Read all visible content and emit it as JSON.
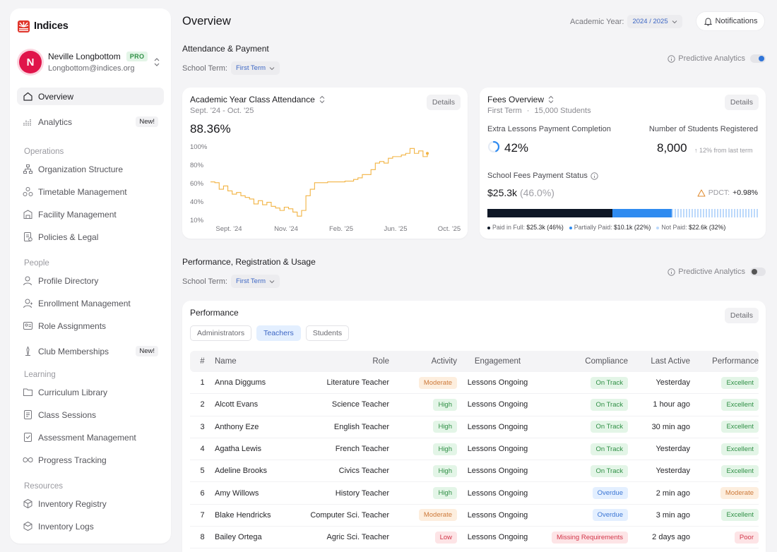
{
  "app": {
    "name": "Indices"
  },
  "profile": {
    "initial": "N",
    "name": "Neville Longbottom",
    "badge": "PRO",
    "email": "Longbottom@indices.org"
  },
  "nav": {
    "top": [
      {
        "label": "Overview",
        "icon": "home-icon",
        "active": true
      },
      {
        "label": "Analytics",
        "icon": "analytics-icon",
        "badge": "New!"
      }
    ],
    "sections": [
      {
        "label": "Operations",
        "items": [
          {
            "label": "Organization Structure",
            "icon": "org-structure-icon"
          },
          {
            "label": "Timetable Management",
            "icon": "timetable-icon"
          },
          {
            "label": "Facility Management",
            "icon": "facility-icon"
          },
          {
            "label": "Policies & Legal",
            "icon": "policy-icon"
          }
        ]
      },
      {
        "label": "People",
        "items": [
          {
            "label": "Profile Directory",
            "icon": "profile-icon"
          },
          {
            "label": "Enrollment Management",
            "icon": "enrollment-icon"
          },
          {
            "label": "Role Assignments",
            "icon": "role-icon"
          },
          {
            "label": "Club Memberships",
            "icon": "club-icon",
            "badge": "New!"
          }
        ]
      },
      {
        "label": "Learning",
        "items": [
          {
            "label": "Curriculum Library",
            "icon": "folder-icon"
          },
          {
            "label": "Class Sessions",
            "icon": "sessions-icon"
          },
          {
            "label": "Assessment Management",
            "icon": "assessment-icon"
          },
          {
            "label": "Progress Tracking",
            "icon": "progress-icon"
          }
        ]
      },
      {
        "label": "Resources",
        "items": [
          {
            "label": "Inventory Registry",
            "icon": "box-icon"
          },
          {
            "label": "Inventory Logs",
            "icon": "logs-icon"
          }
        ]
      }
    ]
  },
  "header": {
    "title": "Overview",
    "year_label": "Academic Year:",
    "year_value": "2024 / 2025",
    "notifications_label": "Notifications"
  },
  "attendance_section": {
    "title": "Attendance & Payment",
    "term_label": "School Term:",
    "term_value": "First Term",
    "predictive_label": "Predictive Analytics",
    "predictive_on": true
  },
  "attendance_card": {
    "title": "Academic Year Class Attendance",
    "subtitle": "Sept. '24 - Oct. '25",
    "value": "88.36%",
    "details_label": "Details"
  },
  "fees_card": {
    "title": "Fees Overview",
    "subtitle": "First Term",
    "students": "15,000 Students",
    "details_label": "Details",
    "extra_label": "Extra Lessons Payment Completion",
    "extra_value": "42%",
    "extra_fraction": 0.42,
    "registered_label": "Number of Students Registered",
    "registered_value": "8,000",
    "registered_note": "12% from last term",
    "status_label": "School Fees Payment Status",
    "status_value": "$25.3k",
    "status_pct": "(46.0%)",
    "pdct_label": "PDCT:",
    "pdct_value": "+0.98%",
    "bar": [
      {
        "label": "Paid in Full:",
        "value": "$25.3k (46%)",
        "fraction": 0.46,
        "color": "#0e1726"
      },
      {
        "label": "Partially Paid:",
        "value": "$10.1k (22%)",
        "fraction": 0.22,
        "color": "#2f8bf0"
      },
      {
        "label": "Not Paid:",
        "value": "$22.6k (32%)",
        "fraction": 0.32,
        "color": "#bcd9fb"
      }
    ]
  },
  "chart_data": {
    "type": "line",
    "title": "Academic Year Class Attendance",
    "x_ticks": [
      "Sept. '24",
      "Nov. '24",
      "Feb. '25",
      "Jun. '25",
      "Oct. '25"
    ],
    "y_ticks": [
      "100%",
      "80%",
      "60%",
      "40%",
      "10%"
    ],
    "ylim": [
      10,
      100
    ],
    "color": "#f2b342",
    "grid": false,
    "x": [
      0,
      2,
      4,
      6,
      8,
      10,
      12,
      14,
      16,
      18,
      20,
      22,
      24,
      26,
      28,
      30,
      32,
      34,
      36,
      38,
      40,
      42,
      44,
      46,
      48,
      50,
      52,
      54,
      56,
      58,
      60,
      62,
      64,
      66,
      68,
      70,
      72,
      74,
      76,
      78,
      80,
      82,
      84,
      86,
      88,
      90,
      92,
      94,
      96,
      98,
      100
    ],
    "y": [
      57,
      56,
      48,
      52,
      46,
      42,
      44,
      40,
      38,
      36,
      30,
      34,
      29,
      32,
      27,
      25,
      22,
      26,
      24,
      20,
      15,
      22,
      40,
      48,
      56,
      56,
      56,
      57,
      57,
      57,
      57,
      58,
      58,
      60,
      62,
      66,
      66,
      72,
      80,
      82,
      80,
      86,
      88,
      88,
      90,
      92,
      98,
      92,
      95,
      88,
      92
    ]
  },
  "performance_section": {
    "title": "Performance, Registration & Usage",
    "term_label": "School Term:",
    "term_value": "First Term",
    "predictive_label": "Predictive Analytics",
    "predictive_on": false
  },
  "performance_card": {
    "title": "Performance",
    "details_label": "Details",
    "tabs": [
      {
        "label": "Administrators"
      },
      {
        "label": "Teachers",
        "active": true
      },
      {
        "label": "Students"
      }
    ],
    "columns": [
      "#",
      "Name",
      "Role",
      "Activity",
      "Engagement",
      "Compliance",
      "Last Active",
      "Performance"
    ],
    "rows": [
      {
        "num": "1",
        "name": "Anna Diggums",
        "role": "Literature Teacher",
        "activity": "Moderate",
        "engagement": "Lessons Ongoing",
        "compliance": "On Track",
        "last": "Yesterday",
        "perf": "Excellent"
      },
      {
        "num": "2",
        "name": "Alcott Evans",
        "role": "Science Teacher",
        "activity": "High",
        "engagement": "Lessons Ongoing",
        "compliance": "On Track",
        "last": "1 hour ago",
        "perf": "Excellent"
      },
      {
        "num": "3",
        "name": "Anthony Eze",
        "role": "English Teacher",
        "activity": "High",
        "engagement": "Lessons Ongoing",
        "compliance": "On Track",
        "last": "30 min ago",
        "perf": "Excellent"
      },
      {
        "num": "4",
        "name": "Agatha Lewis",
        "role": "French Teacher",
        "activity": "High",
        "engagement": "Lessons Ongoing",
        "compliance": "On Track",
        "last": "Yesterday",
        "perf": "Excellent"
      },
      {
        "num": "5",
        "name": "Adeline Brooks",
        "role": "Civics Teacher",
        "activity": "High",
        "engagement": "Lessons Ongoing",
        "compliance": "On Track",
        "last": "Yesterday",
        "perf": "Excellent"
      },
      {
        "num": "6",
        "name": "Amy Willows",
        "role": "History Teacher",
        "activity": "High",
        "engagement": "Lessons Ongoing",
        "compliance": "Overdue",
        "last": "2 min ago",
        "perf": "Moderate"
      },
      {
        "num": "7",
        "name": "Blake Hendricks",
        "role": "Computer Sci. Teacher",
        "activity": "Moderate",
        "engagement": "Lessons Ongoing",
        "compliance": "Overdue",
        "last": "3 min ago",
        "perf": "Excellent"
      },
      {
        "num": "8",
        "name": "Bailey Ortega",
        "role": "Agric Sci. Teacher",
        "activity": "Low",
        "engagement": "Lessons Ongoing",
        "compliance": "Missing Requirements",
        "last": "2 days ago",
        "perf": "Poor"
      }
    ]
  }
}
